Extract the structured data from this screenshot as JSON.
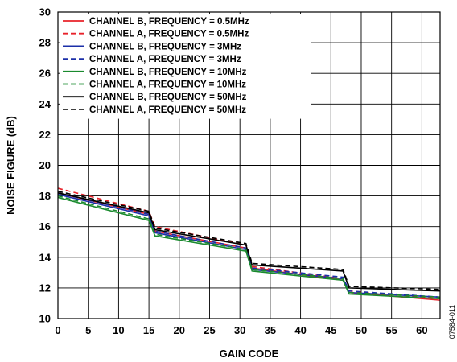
{
  "chart_data": {
    "type": "line",
    "xlabel": "GAIN CODE",
    "ylabel": "NOISE FIGURE (dB)",
    "xlim": [
      0,
      63
    ],
    "ylim": [
      10,
      30
    ],
    "x_ticks": [
      0,
      5,
      10,
      15,
      20,
      25,
      30,
      35,
      40,
      45,
      50,
      55,
      60
    ],
    "y_ticks": [
      10,
      12,
      14,
      16,
      18,
      20,
      22,
      24,
      26,
      28,
      30
    ],
    "grid": true,
    "legend_position": "top-left",
    "figure_id": "07584-011",
    "series": [
      {
        "name": "CHANNEL B, FREQUENCY = 0.5MHz",
        "color": "#e8222a",
        "dash": "solid",
        "points": [
          [
            0,
            18.2
          ],
          [
            15,
            16.8
          ],
          [
            16,
            15.7
          ],
          [
            31,
            14.6
          ],
          [
            32,
            13.3
          ],
          [
            47,
            12.5
          ],
          [
            48,
            11.7
          ],
          [
            63,
            11.2
          ]
        ]
      },
      {
        "name": "CHANNEL A, FREQUENCY = 0.5MHz",
        "color": "#e8222a",
        "dash": "dashed",
        "points": [
          [
            0,
            18.5
          ],
          [
            15,
            17.0
          ],
          [
            16,
            16.0
          ],
          [
            31,
            14.8
          ],
          [
            32,
            13.4
          ],
          [
            47,
            12.6
          ],
          [
            48,
            11.8
          ],
          [
            63,
            11.3
          ]
        ]
      },
      {
        "name": "CHANNEL B, FREQUENCY = 3MHz",
        "color": "#1b2fa8",
        "dash": "solid",
        "points": [
          [
            0,
            18.1
          ],
          [
            15,
            16.7
          ],
          [
            16,
            15.6
          ],
          [
            31,
            14.5
          ],
          [
            32,
            13.2
          ],
          [
            47,
            12.6
          ],
          [
            48,
            11.7
          ],
          [
            63,
            11.4
          ]
        ]
      },
      {
        "name": "CHANNEL A, FREQUENCY = 3MHz",
        "color": "#1b2fa8",
        "dash": "dashed",
        "points": [
          [
            0,
            18.2
          ],
          [
            15,
            16.8
          ],
          [
            16,
            15.7
          ],
          [
            31,
            14.6
          ],
          [
            32,
            13.3
          ],
          [
            47,
            12.7
          ],
          [
            48,
            11.8
          ],
          [
            63,
            11.4
          ]
        ]
      },
      {
        "name": "CHANNEL B, FREQUENCY = 10MHz",
        "color": "#1a8a2e",
        "dash": "solid",
        "points": [
          [
            0,
            17.9
          ],
          [
            15,
            16.4
          ],
          [
            16,
            15.4
          ],
          [
            31,
            14.4
          ],
          [
            32,
            13.1
          ],
          [
            47,
            12.5
          ],
          [
            48,
            11.6
          ],
          [
            63,
            11.3
          ]
        ]
      },
      {
        "name": "CHANNEL A, FREQUENCY = 10MHz",
        "color": "#1a8a2e",
        "dash": "dashed",
        "points": [
          [
            0,
            18.0
          ],
          [
            15,
            16.5
          ],
          [
            16,
            15.5
          ],
          [
            31,
            14.5
          ],
          [
            32,
            13.2
          ],
          [
            47,
            12.6
          ],
          [
            48,
            11.7
          ],
          [
            63,
            11.4
          ]
        ]
      },
      {
        "name": "CHANNEL B, FREQUENCY = 50MHz",
        "color": "#000000",
        "dash": "solid",
        "points": [
          [
            0,
            18.2
          ],
          [
            15,
            16.9
          ],
          [
            16,
            15.8
          ],
          [
            31,
            14.8
          ],
          [
            32,
            13.5
          ],
          [
            47,
            13.1
          ],
          [
            48,
            12.0
          ],
          [
            63,
            11.8
          ]
        ]
      },
      {
        "name": "CHANNEL A, FREQUENCY = 50MHz",
        "color": "#000000",
        "dash": "dashed",
        "points": [
          [
            0,
            18.3
          ],
          [
            15,
            17.0
          ],
          [
            16,
            15.9
          ],
          [
            31,
            14.9
          ],
          [
            32,
            13.6
          ],
          [
            47,
            13.2
          ],
          [
            48,
            12.1
          ],
          [
            63,
            11.9
          ]
        ]
      }
    ]
  }
}
